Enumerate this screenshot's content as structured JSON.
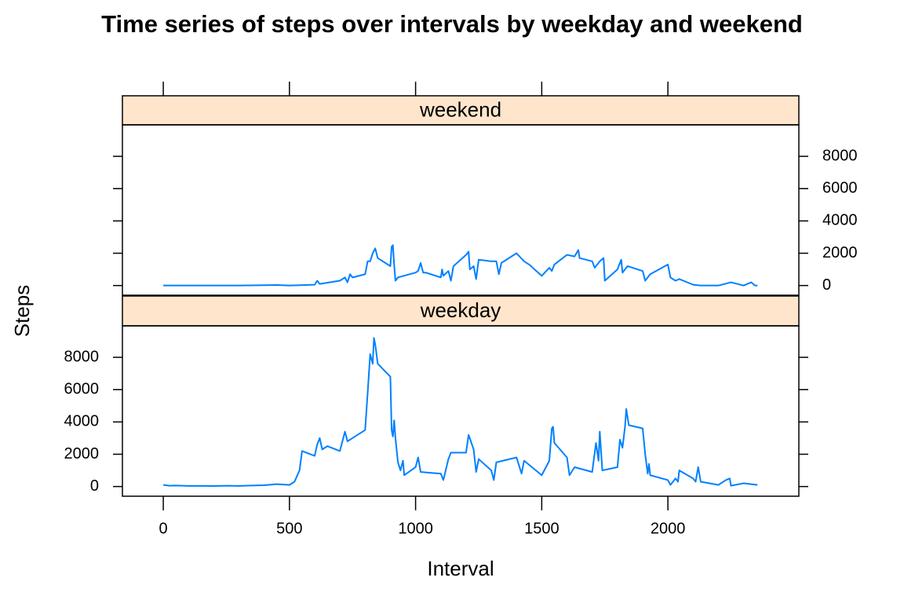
{
  "title": "Time series of steps over intervals by weekday and weekend",
  "x_label": "Interval",
  "y_label": "Steps",
  "chart_data": [
    {
      "type": "line",
      "strip": "weekend",
      "color": "#0080ff",
      "x": [
        0,
        50,
        100,
        200,
        300,
        400,
        450,
        500,
        600,
        610,
        620,
        700,
        720,
        730,
        740,
        750,
        800,
        810,
        820,
        830,
        840,
        850,
        900,
        905,
        910,
        915,
        920,
        930,
        1000,
        1010,
        1020,
        1030,
        1040,
        1100,
        1105,
        1110,
        1130,
        1140,
        1150,
        1200,
        1210,
        1215,
        1230,
        1240,
        1250,
        1300,
        1320,
        1330,
        1340,
        1400,
        1430,
        1450,
        1500,
        1530,
        1540,
        1550,
        1600,
        1630,
        1645,
        1650,
        1700,
        1710,
        1730,
        1745,
        1750,
        1800,
        1815,
        1820,
        1840,
        1900,
        1910,
        1930,
        2000,
        2010,
        2030,
        2045,
        2100,
        2130,
        2200,
        2250,
        2300,
        2330,
        2345,
        2355
      ],
      "values": [
        0,
        0,
        0,
        0,
        0,
        20,
        30,
        0,
        50,
        300,
        100,
        300,
        500,
        200,
        700,
        500,
        700,
        1500,
        1500,
        2000,
        2300,
        1700,
        1200,
        2400,
        2500,
        1300,
        300,
        500,
        800,
        900,
        1400,
        800,
        800,
        500,
        1000,
        600,
        900,
        300,
        1200,
        1900,
        2100,
        1000,
        1200,
        400,
        1600,
        1500,
        1500,
        700,
        1400,
        2000,
        1500,
        1300,
        600,
        1100,
        900,
        1300,
        1900,
        1800,
        2200,
        1700,
        1500,
        1100,
        1500,
        1700,
        300,
        1000,
        1600,
        800,
        1200,
        900,
        300,
        700,
        1300,
        500,
        300,
        400,
        50,
        0,
        0,
        200,
        0,
        200,
        0,
        0
      ],
      "xlim": [
        -162,
        2519
      ],
      "ylim": [
        -600,
        9950
      ],
      "xticks": [
        0,
        500,
        1000,
        1500,
        2000
      ],
      "yticks": [
        0,
        2000,
        4000,
        6000,
        8000
      ]
    },
    {
      "type": "line",
      "strip": "weekday",
      "color": "#0080ff",
      "x": [
        0,
        25,
        50,
        100,
        150,
        200,
        250,
        300,
        350,
        400,
        450,
        500,
        520,
        540,
        550,
        600,
        610,
        620,
        630,
        650,
        700,
        720,
        730,
        750,
        800,
        810,
        820,
        830,
        835,
        840,
        850,
        900,
        905,
        910,
        915,
        920,
        930,
        940,
        950,
        955,
        1000,
        1010,
        1020,
        1100,
        1110,
        1130,
        1140,
        1200,
        1210,
        1230,
        1240,
        1250,
        1300,
        1310,
        1320,
        1400,
        1420,
        1430,
        1500,
        1530,
        1540,
        1545,
        1550,
        1600,
        1610,
        1630,
        1700,
        1715,
        1725,
        1730,
        1740,
        1800,
        1810,
        1820,
        1830,
        1835,
        1845,
        1900,
        1910,
        1920,
        1925,
        1930,
        2000,
        2010,
        2030,
        2040,
        2045,
        2100,
        2110,
        2120,
        2130,
        2200,
        2230,
        2245,
        2250,
        2300,
        2355
      ],
      "values": [
        100,
        50,
        60,
        40,
        40,
        30,
        50,
        40,
        60,
        80,
        150,
        100,
        300,
        1000,
        2200,
        1900,
        2600,
        3000,
        2300,
        2500,
        2200,
        3400,
        2800,
        3000,
        3500,
        5800,
        8200,
        7600,
        9200,
        8800,
        7600,
        6800,
        3500,
        3100,
        4100,
        3000,
        1500,
        1000,
        1600,
        700,
        1200,
        1800,
        900,
        800,
        400,
        1700,
        2100,
        2100,
        3200,
        2300,
        900,
        1700,
        1000,
        400,
        1500,
        1800,
        800,
        1600,
        700,
        1600,
        3600,
        3700,
        2700,
        1800,
        700,
        1200,
        900,
        2700,
        1600,
        3400,
        1000,
        1200,
        2900,
        2400,
        3700,
        4800,
        3800,
        3600,
        2000,
        800,
        1400,
        700,
        400,
        100,
        500,
        300,
        1000,
        500,
        300,
        1200,
        300,
        100,
        400,
        500,
        50,
        200,
        100
      ],
      "xlim": [
        -162,
        2519
      ],
      "ylim": [
        -600,
        9950
      ],
      "xticks": [
        0,
        500,
        1000,
        1500,
        2000
      ],
      "yticks": [
        0,
        2000,
        4000,
        6000,
        8000
      ]
    }
  ]
}
